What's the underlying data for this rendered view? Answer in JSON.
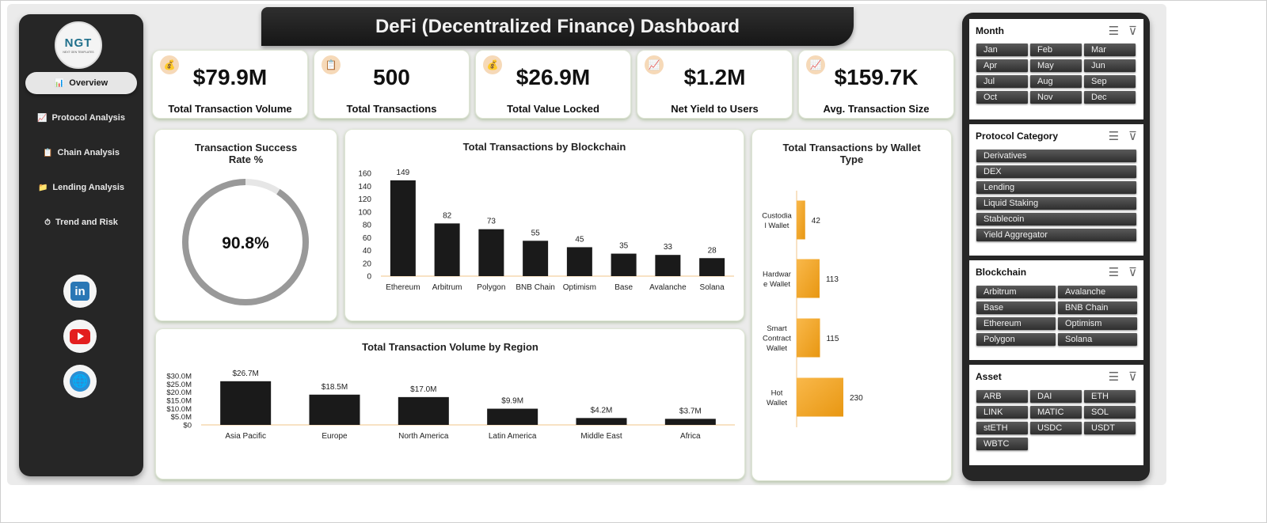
{
  "app": {
    "title": "DeFi (Decentralized Finance) Dashboard",
    "logo_text": "NGT",
    "logo_sub": "NEXT GEN TEMPLATES"
  },
  "sidebar": {
    "items": [
      {
        "label": "Overview",
        "icon": "bar-chart-icon",
        "glyph": "📊",
        "active": true
      },
      {
        "label": "Protocol Analysis",
        "icon": "line-chart-icon",
        "glyph": "📈"
      },
      {
        "label": "Chain Analysis",
        "icon": "clipboard-icon",
        "glyph": "📋"
      },
      {
        "label": "Lending Analysis",
        "icon": "folder-icon",
        "glyph": "📁"
      },
      {
        "label": "Trend and Risk",
        "icon": "stopwatch-icon",
        "glyph": "⏱"
      }
    ],
    "social": [
      {
        "name": "linkedin",
        "text": "in"
      },
      {
        "name": "youtube"
      },
      {
        "name": "website",
        "text": "🌐"
      }
    ]
  },
  "kpis": [
    {
      "value": "$79.9M",
      "label": "Total Transaction Volume",
      "icon": "money-bag-icon",
      "glyph": "💰"
    },
    {
      "value": "500",
      "label": "Total Transactions",
      "icon": "clipboard-icon",
      "glyph": "📋"
    },
    {
      "value": "$26.9M",
      "label": "Total Value Locked",
      "icon": "money-bag-icon",
      "glyph": "💰"
    },
    {
      "value": "$1.2M",
      "label": "Net Yield to Users",
      "icon": "line-chart-icon",
      "glyph": "📈"
    },
    {
      "value": "$159.7K",
      "label": "Avg. Transaction Size",
      "icon": "line-chart-icon",
      "glyph": "📈"
    }
  ],
  "success": {
    "title_line1": "Transaction Success",
    "title_line2": "Rate %",
    "value": "90.8%",
    "fraction": 0.908
  },
  "chart_data": [
    {
      "type": "bar",
      "title": "Total Transactions by Blockchain",
      "categories": [
        "Ethereum",
        "Arbitrum",
        "Polygon",
        "BNB Chain",
        "Optimism",
        "Base",
        "Avalanche",
        "Solana"
      ],
      "values": [
        149,
        82,
        73,
        55,
        45,
        35,
        33,
        28
      ],
      "ylim": [
        0,
        160
      ],
      "yticks": [
        "0",
        "20",
        "40",
        "60",
        "80",
        "100",
        "120",
        "140",
        "160"
      ],
      "data_labels": true,
      "grid": false
    },
    {
      "type": "bar",
      "title": "Total Transaction Volume by Region",
      "categories": [
        "Asia Pacific",
        "Europe",
        "North America",
        "Latin America",
        "Middle East",
        "Africa"
      ],
      "values": [
        26.7,
        18.5,
        17.0,
        9.9,
        4.2,
        3.7
      ],
      "value_labels": [
        "$26.7M",
        "$18.5M",
        "$17.0M",
        "$9.9M",
        "$4.2M",
        "$3.7M"
      ],
      "ylim": [
        0,
        30
      ],
      "yticks": [
        "$0",
        "$5.0M",
        "$10.0M",
        "$15.0M",
        "$20.0M",
        "$25.0M",
        "$30.0M"
      ],
      "grid": false
    },
    {
      "type": "bar",
      "orientation": "horizontal",
      "title": "Total Transactions by Wallet Type",
      "categories": [
        "Custodial Wallet",
        "Hardware Wallet",
        "Smart Contract Wallet",
        "Hot Wallet"
      ],
      "category_lines": [
        [
          "Custodia",
          "l Wallet"
        ],
        [
          "Hardwar",
          "e Wallet"
        ],
        [
          "Smart",
          "Contract",
          "Wallet"
        ],
        [
          "Hot",
          "Wallet"
        ]
      ],
      "values": [
        42,
        113,
        115,
        230
      ],
      "color": "#f5a623"
    }
  ],
  "slicers": [
    {
      "title": "Month",
      "columns": 3,
      "items": [
        "Jan",
        "Feb",
        "Mar",
        "Apr",
        "May",
        "Jun",
        "Jul",
        "Aug",
        "Sep",
        "Oct",
        "Nov",
        "Dec"
      ]
    },
    {
      "title": "Protocol Category",
      "columns": 1,
      "items": [
        "Derivatives",
        "DEX",
        "Lending",
        "Liquid Staking",
        "Stablecoin",
        "Yield Aggregator"
      ]
    },
    {
      "title": "Blockchain",
      "columns": 2,
      "items": [
        "Arbitrum",
        "Avalanche",
        "Base",
        "BNB Chain",
        "Ethereum",
        "Optimism",
        "Polygon",
        "Solana"
      ]
    },
    {
      "title": "Asset",
      "columns": 3,
      "items": [
        "ARB",
        "DAI",
        "ETH",
        "LINK",
        "MATIC",
        "SOL",
        "stETH",
        "USDC",
        "USDT",
        "WBTC"
      ]
    }
  ],
  "colors": {
    "bar_dark": "#1a1a1a",
    "accent_orange": "#f5a623",
    "ring_gray": "#999999",
    "ring_track": "#e6e6e6"
  }
}
